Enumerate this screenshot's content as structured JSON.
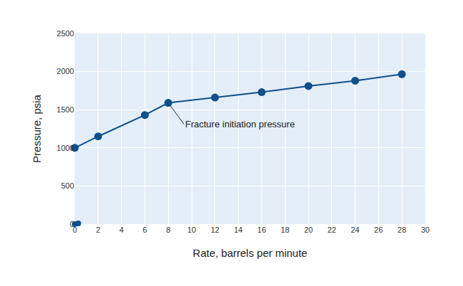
{
  "chart_data": {
    "type": "line",
    "x_label": "Rate, barrels per minute",
    "y_label": "Pressure, psia",
    "series": [
      {
        "type": "line",
        "color": "#0e4f8c",
        "marker": "circle",
        "x": [
          0,
          2,
          6,
          8,
          12,
          16,
          20,
          24,
          28
        ],
        "values": [
          1000,
          1150,
          1430,
          1590,
          1660,
          1730,
          1810,
          1880,
          1965
        ]
      },
      {
        "type": "scatter",
        "color": "#0e4f8c",
        "marker": "circle",
        "x": [
          0,
          0.3
        ],
        "values": [
          0,
          10
        ]
      }
    ],
    "annotations": [
      {
        "text": "Fracture initiation pressure",
        "x": 8,
        "y": 1590
      }
    ],
    "xlim": [
      0,
      30
    ],
    "xticks": [
      0,
      2,
      4,
      6,
      8,
      10,
      12,
      14,
      16,
      18,
      20,
      22,
      24,
      26,
      28,
      30
    ],
    "ylim": [
      0,
      2500
    ],
    "yticks": [
      0,
      500,
      1000,
      1500,
      2000,
      2500
    ],
    "grid": true
  }
}
